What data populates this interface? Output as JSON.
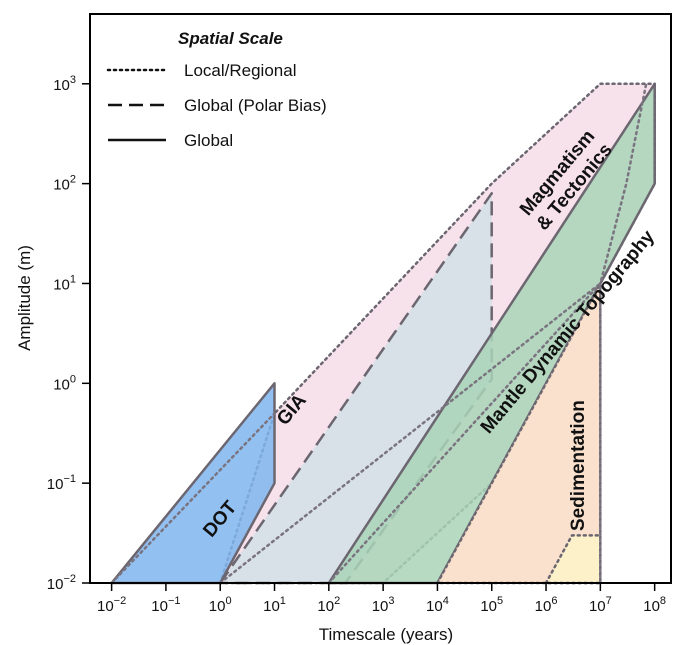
{
  "chart_data": {
    "type": "area",
    "title": "",
    "xlabel": "Timescale (years)",
    "ylabel": "Amplitude (m)",
    "x_scale": "log",
    "y_scale": "log",
    "xlim": [
      0.004,
      200000000
    ],
    "ylim": [
      0.01,
      5000
    ],
    "grid": false,
    "x_ticks": [
      0.01,
      0.1,
      1,
      10,
      100,
      1000,
      10000,
      100000,
      1000000,
      10000000,
      100000000
    ],
    "x_tick_labels": [
      {
        "base": "10",
        "exp": "−2"
      },
      {
        "base": "10",
        "exp": "−1"
      },
      {
        "base": "10",
        "exp": "0"
      },
      {
        "base": "10",
        "exp": "1"
      },
      {
        "base": "10",
        "exp": "2"
      },
      {
        "base": "10",
        "exp": "3"
      },
      {
        "base": "10",
        "exp": "4"
      },
      {
        "base": "10",
        "exp": "5"
      },
      {
        "base": "10",
        "exp": "6"
      },
      {
        "base": "10",
        "exp": "7"
      },
      {
        "base": "10",
        "exp": "8"
      }
    ],
    "y_ticks": [
      0.01,
      0.1,
      1,
      10,
      100,
      1000
    ],
    "y_tick_labels": [
      {
        "base": "10",
        "exp": "−2"
      },
      {
        "base": "10",
        "exp": "−1"
      },
      {
        "base": "10",
        "exp": "0"
      },
      {
        "base": "10",
        "exp": "1"
      },
      {
        "base": "10",
        "exp": "2"
      },
      {
        "base": "10",
        "exp": "3"
      }
    ],
    "legend": {
      "title": "Spatial Scale",
      "placement": "top-left",
      "entries": [
        {
          "label": "Local/Regional",
          "style": "dotted"
        },
        {
          "label": "Global (Polar Bias)",
          "style": "dashed"
        },
        {
          "label": "Global",
          "style": "solid"
        }
      ]
    },
    "series": [
      {
        "name": "Magmatism & Tectonics",
        "color": "#f6dce6",
        "outline_style": "dotted",
        "label_lines": [
          "Magmatism",
          "& Tectonics"
        ],
        "polygon": [
          [
            1,
            0.01
          ],
          [
            10,
            0.5
          ],
          [
            100000,
            100
          ],
          [
            10000000,
            1000
          ],
          [
            100000000,
            1000
          ],
          [
            100000000,
            100
          ],
          [
            1000000,
            1
          ],
          [
            100000,
            0.1
          ],
          [
            1000,
            0.01
          ]
        ]
      },
      {
        "name": "GIA",
        "color": "#d2dfe8",
        "outline_style": "dashed",
        "label_lines": [
          "GIA"
        ],
        "polygon": [
          [
            1,
            0.01
          ],
          [
            100000,
            80
          ],
          [
            100000,
            1.1
          ],
          [
            200,
            0.01
          ]
        ]
      },
      {
        "name": "Mantle Dynamic Topography",
        "color": "#a9d4b7",
        "outline_style": "solid",
        "label_lines": [
          "Mantle Dynamic Topography"
        ],
        "polygon": [
          [
            100,
            0.01
          ],
          [
            100000000,
            1000
          ],
          [
            100000000,
            100
          ],
          [
            10000,
            0.01
          ]
        ]
      },
      {
        "name": "Sedimentation",
        "color": "#f8dcc4",
        "outline_style": "dotted",
        "label_lines": [
          "Sedimentation"
        ],
        "polygon": [
          [
            10000,
            0.01
          ],
          [
            10000000,
            10
          ],
          [
            10000000,
            0.01
          ]
        ]
      },
      {
        "name": "Sedimentation (yellow)",
        "color": "#fdf3c8",
        "outline_style": "dotted",
        "label_lines": [],
        "polygon": [
          [
            1000000,
            0.01
          ],
          [
            3000000,
            0.03
          ],
          [
            10000000,
            0.03
          ],
          [
            10000000,
            0.01
          ]
        ]
      },
      {
        "name": "DOT",
        "color": "#7fb5ee",
        "outline_style": "solid",
        "label_lines": [
          "DOT"
        ],
        "polygon": [
          [
            0.01,
            0.01
          ],
          [
            10,
            1
          ],
          [
            10,
            0.1
          ],
          [
            1,
            0.01
          ]
        ]
      }
    ],
    "extra_lines": [
      {
        "style": "dotted",
        "points": [
          [
            0.01,
            0.01
          ],
          [
            10,
            0.5
          ]
        ]
      },
      {
        "style": "dotted",
        "points": [
          [
            1,
            0.01
          ],
          [
            10000000,
            10
          ]
        ]
      },
      {
        "style": "dotted",
        "points": [
          [
            100,
            0.01
          ],
          [
            10000000,
            10
          ],
          [
            30000000,
            100
          ],
          [
            70000000,
            1000
          ]
        ]
      },
      {
        "style": "dotted",
        "points": [
          [
            10000000,
            0.01
          ],
          [
            10000000,
            10
          ]
        ]
      }
    ]
  }
}
